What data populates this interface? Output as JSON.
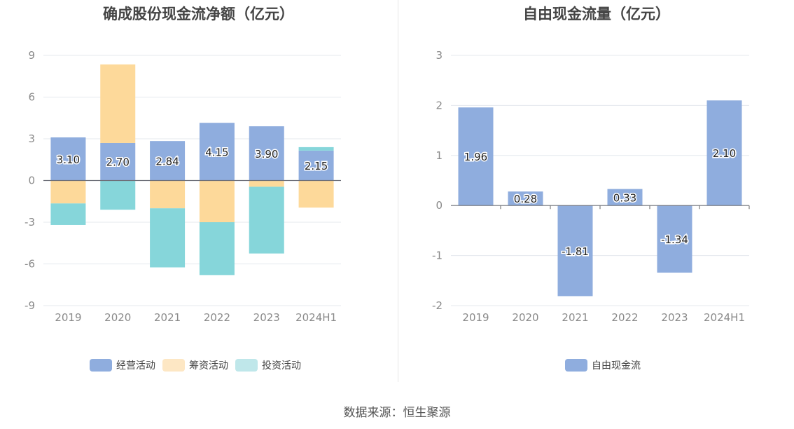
{
  "source_text": "数据来源：恒生聚源",
  "chart_data": [
    {
      "type": "bar",
      "stacked": true,
      "title": "确成股份现金流净额（亿元）",
      "categories": [
        "2019",
        "2020",
        "2021",
        "2022",
        "2023",
        "2024H1"
      ],
      "ylim": [
        -9,
        9
      ],
      "yticks": [
        9,
        6,
        3,
        0,
        -3,
        -6,
        -9
      ],
      "grid": true,
      "legend_position": "bottom-center",
      "series": [
        {
          "name": "经营活动",
          "color": "#8fadde",
          "values": [
            3.1,
            2.7,
            2.84,
            4.15,
            3.9,
            2.15
          ],
          "labels": [
            "3.10",
            "2.70",
            "2.84",
            "4.15",
            "3.90",
            "2.15"
          ]
        },
        {
          "name": "筹资活动",
          "color": "#fdd99a",
          "values": [
            -1.65,
            5.65,
            -2.0,
            -3.0,
            -0.45,
            -1.95
          ]
        },
        {
          "name": "投资活动",
          "color": "#86d6da",
          "values": [
            -1.55,
            -2.1,
            -4.25,
            -3.8,
            -4.8,
            0.25
          ]
        }
      ],
      "legend_colors": {
        "经营活动": "#8fadde",
        "筹资活动": "#fde7c4",
        "投资活动": "#bfe7ea"
      }
    },
    {
      "type": "bar",
      "title": "自由现金流量（亿元）",
      "categories": [
        "2019",
        "2020",
        "2021",
        "2022",
        "2023",
        "2024H1"
      ],
      "ylim": [
        -2,
        3
      ],
      "yticks": [
        3,
        2,
        1,
        0,
        -1,
        -2
      ],
      "grid": true,
      "legend_position": "bottom-center",
      "series": [
        {
          "name": "自由现金流",
          "color": "#8fadde",
          "values": [
            1.96,
            0.28,
            -1.81,
            0.33,
            -1.34,
            2.1
          ],
          "labels": [
            "1.96",
            "0.28",
            "-1.81",
            "0.33",
            "-1.34",
            "2.10"
          ]
        }
      ]
    }
  ]
}
